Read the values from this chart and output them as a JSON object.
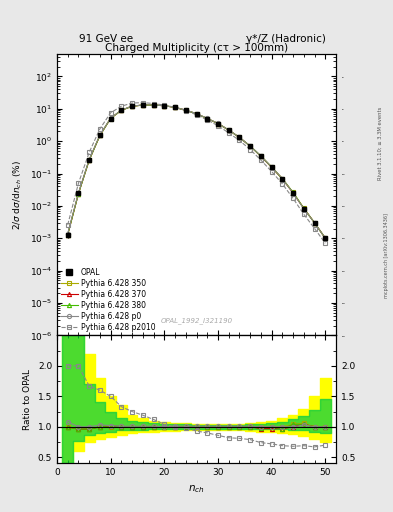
{
  "title_top_left": "91 GeV ee",
  "title_top_right": "γ*/Z (Hadronic)",
  "plot_title": "Charged Multiplicity (cτ > 100mm)",
  "ylabel_main": "2/σ dσ/dn_{ch} (%)",
  "ylabel_ratio": "Ratio to OPAL",
  "xlabel": "n_{ch}",
  "watermark": "OPAL_1992_I321190",
  "right_label": "Rivet 3.1.10; ≥ 3.3M events",
  "right_label2": "mcplots.cern.ch [arXiv:1306.3436]",
  "nch": [
    2,
    4,
    6,
    8,
    10,
    12,
    14,
    16,
    18,
    20,
    22,
    24,
    26,
    28,
    30,
    32,
    34,
    36,
    38,
    40,
    42,
    44,
    46,
    48,
    50
  ],
  "opal_y": [
    0.0013,
    0.025,
    0.27,
    1.5,
    5.0,
    9.0,
    12.0,
    13.0,
    13.0,
    12.5,
    11.0,
    9.0,
    7.0,
    5.0,
    3.5,
    2.2,
    1.3,
    0.7,
    0.35,
    0.16,
    0.07,
    0.025,
    0.008,
    0.003,
    0.001
  ],
  "opal_yerr": [
    0.0003,
    0.004,
    0.025,
    0.12,
    0.3,
    0.4,
    0.5,
    0.5,
    0.4,
    0.4,
    0.3,
    0.3,
    0.2,
    0.15,
    0.1,
    0.07,
    0.04,
    0.025,
    0.012,
    0.006,
    0.0025,
    0.001,
    0.0003,
    0.00012,
    5e-05
  ],
  "p350_y": [
    0.0013,
    0.024,
    0.26,
    1.5,
    5.0,
    8.9,
    12.0,
    13.0,
    13.0,
    12.4,
    11.0,
    9.0,
    7.0,
    5.0,
    3.5,
    2.2,
    1.3,
    0.71,
    0.35,
    0.16,
    0.07,
    0.026,
    0.0085,
    0.003,
    0.001
  ],
  "p370_y": [
    0.0013,
    0.024,
    0.26,
    1.5,
    5.1,
    9.0,
    12.0,
    13.0,
    13.0,
    12.4,
    11.0,
    9.0,
    7.0,
    5.0,
    3.5,
    2.2,
    1.3,
    0.7,
    0.34,
    0.155,
    0.068,
    0.025,
    0.0083,
    0.003,
    0.001
  ],
  "p380_y": [
    0.0013,
    0.024,
    0.26,
    1.5,
    5.1,
    9.0,
    12.0,
    13.0,
    13.0,
    12.5,
    11.0,
    9.0,
    7.0,
    5.0,
    3.5,
    2.2,
    1.3,
    0.7,
    0.345,
    0.158,
    0.068,
    0.026,
    0.0083,
    0.003,
    0.001
  ],
  "pp0_y": [
    0.0014,
    0.025,
    0.27,
    1.55,
    5.1,
    9.1,
    12.1,
    13.1,
    13.1,
    12.5,
    11.1,
    9.1,
    7.1,
    5.05,
    3.52,
    2.21,
    1.31,
    0.71,
    0.35,
    0.16,
    0.07,
    0.025,
    0.0082,
    0.003,
    0.001
  ],
  "p2010_y": [
    0.0026,
    0.05,
    0.45,
    2.4,
    7.5,
    12.0,
    15.0,
    15.5,
    14.5,
    13.0,
    11.0,
    8.8,
    6.5,
    4.5,
    3.0,
    1.8,
    1.05,
    0.55,
    0.26,
    0.115,
    0.048,
    0.017,
    0.0055,
    0.002,
    0.0007
  ],
  "ratio_p350": [
    1.0,
    0.96,
    0.96,
    1.0,
    1.0,
    0.99,
    1.0,
    1.0,
    1.0,
    0.99,
    1.0,
    1.0,
    1.0,
    1.0,
    1.0,
    1.0,
    1.0,
    1.01,
    1.0,
    1.0,
    1.0,
    1.04,
    1.06,
    1.0,
    1.0
  ],
  "ratio_p370": [
    1.0,
    0.96,
    0.96,
    1.0,
    1.02,
    1.0,
    1.0,
    1.0,
    1.0,
    0.99,
    1.0,
    1.0,
    1.0,
    1.0,
    1.0,
    1.0,
    1.0,
    1.0,
    0.97,
    0.97,
    0.97,
    1.0,
    1.04,
    1.0,
    1.0
  ],
  "ratio_p380": [
    1.0,
    0.96,
    0.96,
    1.0,
    1.02,
    1.0,
    1.0,
    1.0,
    1.0,
    1.0,
    1.0,
    1.0,
    1.0,
    1.0,
    1.0,
    1.0,
    1.0,
    1.0,
    0.986,
    0.99,
    0.97,
    1.04,
    1.04,
    1.0,
    1.0
  ],
  "ratio_pp0": [
    1.08,
    1.0,
    1.0,
    1.03,
    1.02,
    1.01,
    1.01,
    1.01,
    1.01,
    1.0,
    1.01,
    1.01,
    1.01,
    1.01,
    1.01,
    1.01,
    1.01,
    1.01,
    1.0,
    1.0,
    1.0,
    1.0,
    1.03,
    1.0,
    1.0
  ],
  "ratio_p2010": [
    2.0,
    2.0,
    1.67,
    1.6,
    1.5,
    1.33,
    1.25,
    1.19,
    1.12,
    1.04,
    1.0,
    0.98,
    0.93,
    0.9,
    0.86,
    0.82,
    0.81,
    0.79,
    0.74,
    0.72,
    0.69,
    0.68,
    0.69,
    0.67,
    0.7
  ],
  "color_p350": "#aaaa00",
  "color_p370": "#cc0000",
  "color_p380": "#44bb00",
  "color_pp0": "#888888",
  "color_p2010": "#888888",
  "color_opal": "#000000",
  "ylim_main": [
    1e-06,
    500
  ],
  "ylim_ratio": [
    0.4,
    2.5
  ],
  "xlim": [
    0,
    52
  ],
  "bg_color": "#e8e8e8",
  "plot_bg": "#ffffff",
  "yticks_ratio": [
    0.5,
    1.0,
    1.5,
    2.0
  ],
  "yticks_ratio_right": [
    0.5,
    1.0,
    1.5,
    2.0
  ]
}
